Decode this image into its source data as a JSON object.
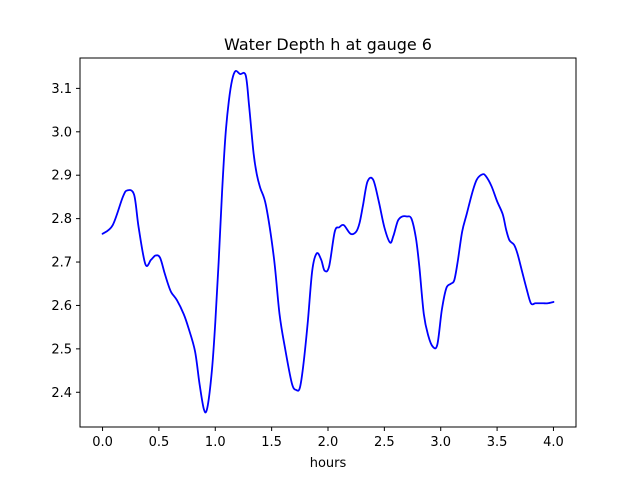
{
  "chart_data": {
    "type": "line",
    "title": "Water Depth h at gauge 6",
    "xlabel": "hours",
    "ylabel": "",
    "xlim": [
      -0.2,
      4.2
    ],
    "ylim": [
      2.32,
      3.17
    ],
    "xticks": [
      0.0,
      0.5,
      1.0,
      1.5,
      2.0,
      2.5,
      3.0,
      3.5,
      4.0
    ],
    "xtick_labels": [
      "0.0",
      "0.5",
      "1.0",
      "1.5",
      "2.0",
      "2.5",
      "3.0",
      "3.5",
      "4.0"
    ],
    "yticks": [
      2.4,
      2.5,
      2.6,
      2.7,
      2.8,
      2.9,
      3.0,
      3.1
    ],
    "ytick_labels": [
      "2.4",
      "2.5",
      "2.6",
      "2.7",
      "2.8",
      "2.9",
      "3.0",
      "3.1"
    ],
    "grid": false,
    "series": [
      {
        "color": "#0000ff",
        "x": [
          0.0,
          0.09,
          0.18,
          0.22,
          0.28,
          0.32,
          0.38,
          0.43,
          0.47,
          0.51,
          0.55,
          0.58,
          0.61,
          0.66,
          0.72,
          0.76,
          0.82,
          0.86,
          0.9,
          0.93,
          0.97,
          1.0,
          1.03,
          1.06,
          1.09,
          1.12,
          1.15,
          1.18,
          1.22,
          1.27,
          1.3,
          1.34,
          1.37,
          1.4,
          1.45,
          1.52,
          1.57,
          1.62,
          1.68,
          1.72,
          1.75,
          1.78,
          1.82,
          1.86,
          1.9,
          1.94,
          1.97,
          2.01,
          2.06,
          2.1,
          2.14,
          2.2,
          2.25,
          2.28,
          2.31,
          2.35,
          2.4,
          2.45,
          2.5,
          2.55,
          2.58,
          2.62,
          2.66,
          2.7,
          2.74,
          2.78,
          2.81,
          2.85,
          2.89,
          2.93,
          2.97,
          3.01,
          3.05,
          3.09,
          3.12,
          3.15,
          3.19,
          3.23,
          3.28,
          3.32,
          3.37,
          3.4,
          3.45,
          3.5,
          3.55,
          3.58,
          3.61,
          3.65,
          3.68,
          3.72,
          3.76,
          3.8,
          3.84,
          3.88,
          3.91,
          3.95,
          4.0
        ],
        "y": [
          2.765,
          2.785,
          2.85,
          2.865,
          2.855,
          2.78,
          2.695,
          2.705,
          2.715,
          2.71,
          2.675,
          2.65,
          2.63,
          2.612,
          2.58,
          2.55,
          2.495,
          2.42,
          2.36,
          2.365,
          2.45,
          2.56,
          2.7,
          2.86,
          2.99,
          3.07,
          3.12,
          3.14,
          3.133,
          3.13,
          3.06,
          2.95,
          2.9,
          2.87,
          2.83,
          2.71,
          2.58,
          2.5,
          2.42,
          2.405,
          2.41,
          2.46,
          2.56,
          2.68,
          2.72,
          2.705,
          2.68,
          2.69,
          2.77,
          2.78,
          2.785,
          2.765,
          2.77,
          2.79,
          2.83,
          2.885,
          2.89,
          2.84,
          2.78,
          2.745,
          2.76,
          2.795,
          2.805,
          2.805,
          2.8,
          2.755,
          2.69,
          2.58,
          2.53,
          2.505,
          2.51,
          2.59,
          2.64,
          2.65,
          2.658,
          2.7,
          2.77,
          2.81,
          2.86,
          2.89,
          2.902,
          2.898,
          2.875,
          2.84,
          2.81,
          2.775,
          2.75,
          2.74,
          2.72,
          2.68,
          2.64,
          2.605,
          2.605,
          2.605,
          2.605,
          2.605,
          2.608
        ]
      }
    ]
  }
}
